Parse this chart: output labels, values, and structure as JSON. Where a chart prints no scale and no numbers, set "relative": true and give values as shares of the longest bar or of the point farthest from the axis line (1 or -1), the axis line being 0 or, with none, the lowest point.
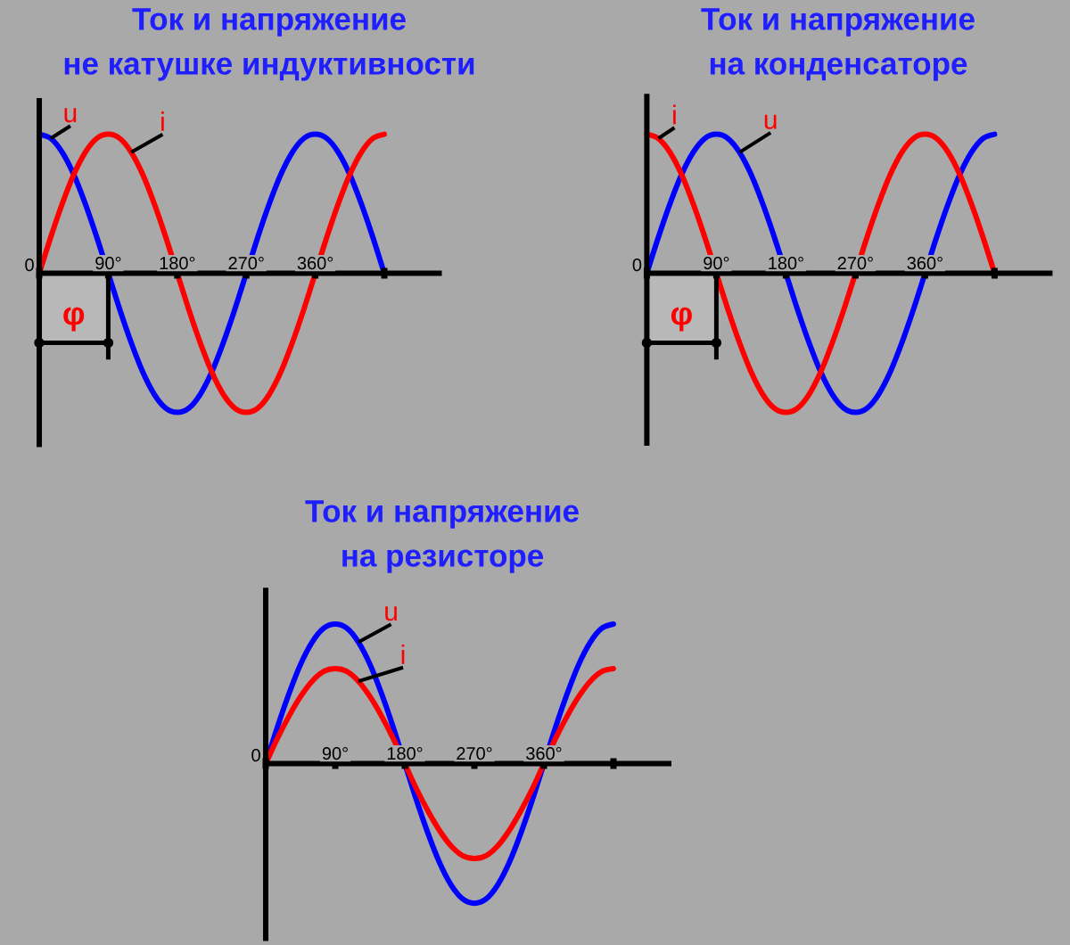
{
  "chart_data": [
    {
      "type": "line",
      "title": "Ток и напряжение\nне катушке индуктивности",
      "relative": true,
      "x": [
        0,
        15,
        30,
        45,
        60,
        75,
        90,
        105,
        120,
        135,
        150,
        165,
        180,
        195,
        210,
        225,
        240,
        255,
        270,
        285,
        300,
        315,
        330,
        345,
        360,
        375,
        390,
        405,
        420,
        435,
        450
      ],
      "xlim": [
        0,
        525
      ],
      "xticks": [
        {
          "value": 0,
          "label": "0"
        },
        {
          "value": 90,
          "label": "90°"
        },
        {
          "value": 180,
          "label": "180°"
        },
        {
          "value": 270,
          "label": "270°"
        },
        {
          "value": 360,
          "label": "360°"
        },
        {
          "value": 450,
          "label": null
        }
      ],
      "series": [
        {
          "name": "u",
          "color": "#0000ff",
          "values": [
            1,
            0.97,
            0.87,
            0.71,
            0.5,
            0.26,
            0,
            -0.26,
            -0.5,
            -0.71,
            -0.87,
            -0.97,
            -1,
            -0.97,
            -0.87,
            -0.71,
            -0.5,
            -0.26,
            0,
            0.26,
            0.5,
            0.71,
            0.87,
            0.97,
            1,
            0.97,
            0.87,
            0.71,
            0.5,
            0.26,
            0
          ]
        },
        {
          "name": "i",
          "color": "#ff0000",
          "values": [
            0,
            0.26,
            0.5,
            0.71,
            0.87,
            0.97,
            1,
            0.97,
            0.87,
            0.71,
            0.5,
            0.26,
            0,
            -0.26,
            -0.5,
            -0.71,
            -0.87,
            -0.97,
            -1,
            -0.97,
            -0.87,
            -0.71,
            -0.5,
            -0.26,
            0,
            0.26,
            0.5,
            0.71,
            0.87,
            0.97,
            1
          ]
        }
      ],
      "bands": [
        {
          "axis": "x",
          "from": 0,
          "to": 90,
          "label": "φ"
        }
      ]
    },
    {
      "type": "line",
      "title": "Ток и напряжение\nна конденсаторе",
      "relative": true,
      "x": [
        0,
        15,
        30,
        45,
        60,
        75,
        90,
        105,
        120,
        135,
        150,
        165,
        180,
        195,
        210,
        225,
        240,
        255,
        270,
        285,
        300,
        315,
        330,
        345,
        360,
        375,
        390,
        405,
        420,
        435,
        450
      ],
      "xlim": [
        0,
        525
      ],
      "xticks": [
        {
          "value": 0,
          "label": "0"
        },
        {
          "value": 90,
          "label": "90°"
        },
        {
          "value": 180,
          "label": "180°"
        },
        {
          "value": 270,
          "label": "270°"
        },
        {
          "value": 360,
          "label": "360°"
        },
        {
          "value": 450,
          "label": null
        }
      ],
      "series": [
        {
          "name": "u",
          "color": "#0000ff",
          "values": [
            0,
            0.26,
            0.5,
            0.71,
            0.87,
            0.97,
            1,
            0.97,
            0.87,
            0.71,
            0.5,
            0.26,
            0,
            -0.26,
            -0.5,
            -0.71,
            -0.87,
            -0.97,
            -1,
            -0.97,
            -0.87,
            -0.71,
            -0.5,
            -0.26,
            0,
            0.26,
            0.5,
            0.71,
            0.87,
            0.97,
            1
          ]
        },
        {
          "name": "i",
          "color": "#ff0000",
          "values": [
            1,
            0.97,
            0.87,
            0.71,
            0.5,
            0.26,
            0,
            -0.26,
            -0.5,
            -0.71,
            -0.87,
            -0.97,
            -1,
            -0.97,
            -0.87,
            -0.71,
            -0.5,
            -0.26,
            0,
            0.26,
            0.5,
            0.71,
            0.87,
            0.97,
            1,
            0.97,
            0.87,
            0.71,
            0.5,
            0.26,
            0
          ]
        }
      ],
      "bands": [
        {
          "axis": "x",
          "from": 0,
          "to": 90,
          "label": "φ"
        }
      ]
    },
    {
      "type": "line",
      "title": "Ток и напряжение\nна резисторе",
      "relative": true,
      "x": [
        0,
        15,
        30,
        45,
        60,
        75,
        90,
        105,
        120,
        135,
        150,
        165,
        180,
        195,
        210,
        225,
        240,
        255,
        270,
        285,
        300,
        315,
        330,
        345,
        360,
        375,
        390,
        405,
        420,
        435,
        450
      ],
      "xlim": [
        0,
        525
      ],
      "xticks": [
        {
          "value": 0,
          "label": "0"
        },
        {
          "value": 90,
          "label": "90°"
        },
        {
          "value": 180,
          "label": "180°"
        },
        {
          "value": 270,
          "label": "270°"
        },
        {
          "value": 360,
          "label": "360°"
        },
        {
          "value": 450,
          "label": null
        }
      ],
      "series": [
        {
          "name": "u",
          "color": "#0000ff",
          "values": [
            0,
            0.26,
            0.5,
            0.71,
            0.87,
            0.97,
            1,
            0.97,
            0.87,
            0.71,
            0.5,
            0.26,
            0,
            -0.26,
            -0.5,
            -0.71,
            -0.87,
            -0.97,
            -1,
            -0.97,
            -0.87,
            -0.71,
            -0.5,
            -0.26,
            0,
            0.26,
            0.5,
            0.71,
            0.87,
            0.97,
            1
          ]
        },
        {
          "name": "i",
          "color": "#ff0000",
          "values": [
            0,
            0.18,
            0.34,
            0.48,
            0.59,
            0.66,
            0.68,
            0.66,
            0.59,
            0.48,
            0.34,
            0.18,
            0,
            -0.18,
            -0.34,
            -0.48,
            -0.59,
            -0.66,
            -0.68,
            -0.66,
            -0.59,
            -0.48,
            -0.34,
            -0.18,
            0,
            0.18,
            0.34,
            0.48,
            0.59,
            0.66,
            0.68
          ]
        }
      ]
    }
  ]
}
